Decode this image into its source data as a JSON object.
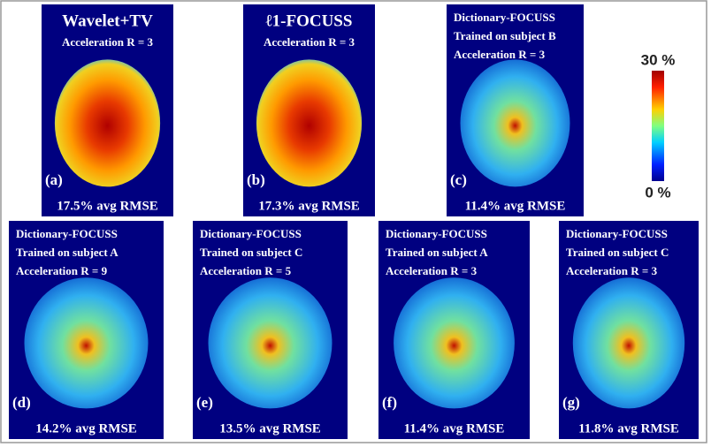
{
  "colorbar": {
    "max_label": "30 %",
    "min_label": "0 %"
  },
  "panels": [
    {
      "label": "(a)",
      "title": [
        "Wavelet+TV",
        "Acceleration R = 3"
      ],
      "rmse": "17.5% avg RMSE"
    },
    {
      "label": "(b)",
      "title": [
        "ℓ1-FOCUSS",
        "Acceleration R = 3"
      ],
      "rmse": "17.3% avg RMSE"
    },
    {
      "label": "(c)",
      "title": [
        "Dictionary-FOCUSS",
        "Trained on subject B",
        "Acceleration R = 3"
      ],
      "rmse": "11.4% avg RMSE"
    },
    {
      "label": "(d)",
      "title": [
        "Dictionary-FOCUSS",
        "Trained on subject A",
        "Acceleration R = 9"
      ],
      "rmse": "14.2% avg RMSE"
    },
    {
      "label": "(e)",
      "title": [
        "Dictionary-FOCUSS",
        "Trained on subject C",
        "Acceleration R = 5"
      ],
      "rmse": "13.5% avg RMSE"
    },
    {
      "label": "(f)",
      "title": [
        "Dictionary-FOCUSS",
        "Trained on subject A",
        "Acceleration R = 3"
      ],
      "rmse": "11.4% avg RMSE"
    },
    {
      "label": "(g)",
      "title": [
        "Dictionary-FOCUSS",
        "Trained on subject C",
        "Acceleration R = 3"
      ],
      "rmse": "11.8% avg RMSE"
    }
  ]
}
